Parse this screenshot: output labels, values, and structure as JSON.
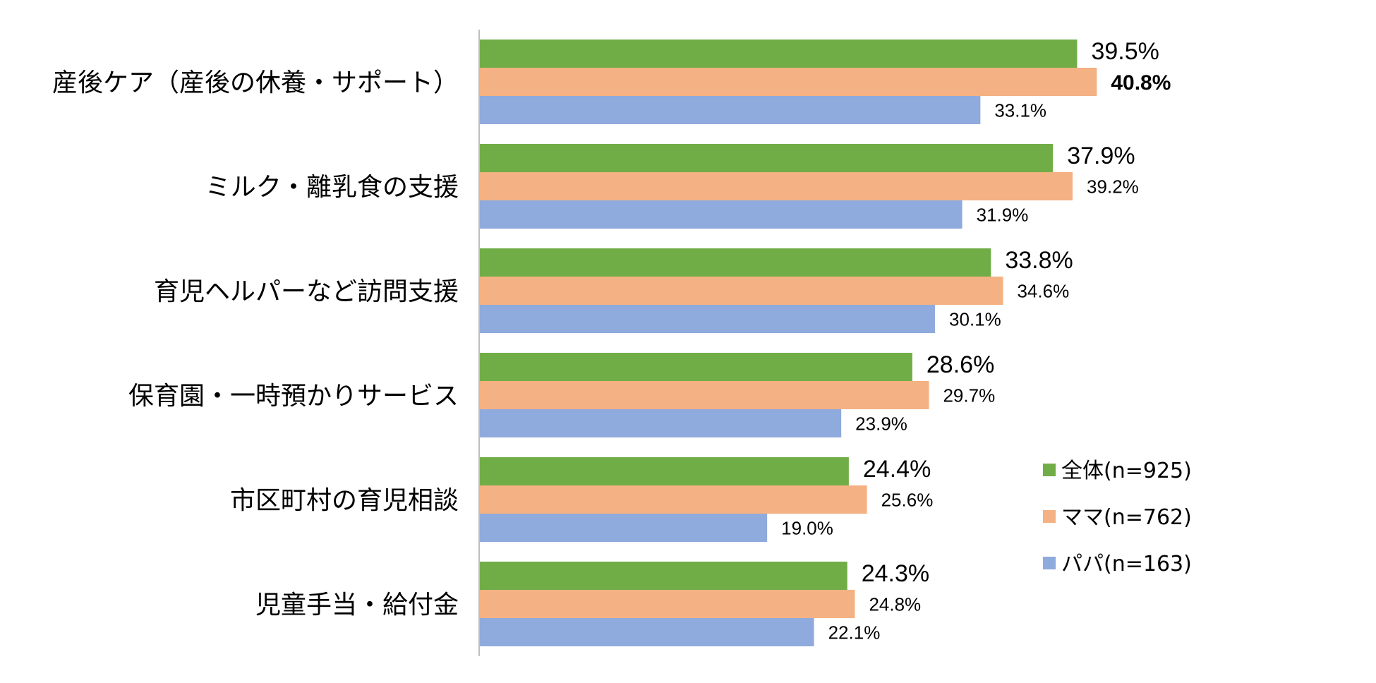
{
  "chart_data": {
    "type": "bar",
    "orientation": "horizontal",
    "categories": [
      "産後ケア（産後の休養・サポート）",
      "ミルク・離乳食の支援",
      "育児ヘルパーなど訪問支援",
      "保育園・一時預かりサービス",
      "市区町村の育児相談",
      "児童手当・給付金"
    ],
    "series": [
      {
        "name": "全体",
        "legend_label": "全体(n=925)",
        "color": "#70ad47",
        "values": [
          39.5,
          37.9,
          33.8,
          28.6,
          24.4,
          24.3
        ],
        "labels": [
          "39.5%",
          "37.9%",
          "33.8%",
          "28.6%",
          "24.4%",
          "24.3%"
        ]
      },
      {
        "name": "ママ",
        "legend_label": "ママ(n=762)",
        "color": "#f4b183",
        "values": [
          40.8,
          39.2,
          34.6,
          29.7,
          25.6,
          24.8
        ],
        "labels": [
          "40.8%",
          "39.2%",
          "34.6%",
          "29.7%",
          "25.6%",
          "24.8%"
        ]
      },
      {
        "name": "パパ",
        "legend_label": "パパ(n=163)",
        "color": "#8faadc",
        "values": [
          33.1,
          31.9,
          30.1,
          23.9,
          19.0,
          22.1
        ],
        "labels": [
          "33.1%",
          "31.9%",
          "30.1%",
          "23.9%",
          "19.0%",
          "22.1%"
        ]
      }
    ],
    "xlim": [
      0,
      50
    ],
    "grid": false,
    "legend_position": "bottom-right",
    "title": "",
    "xlabel": "",
    "ylabel": ""
  }
}
